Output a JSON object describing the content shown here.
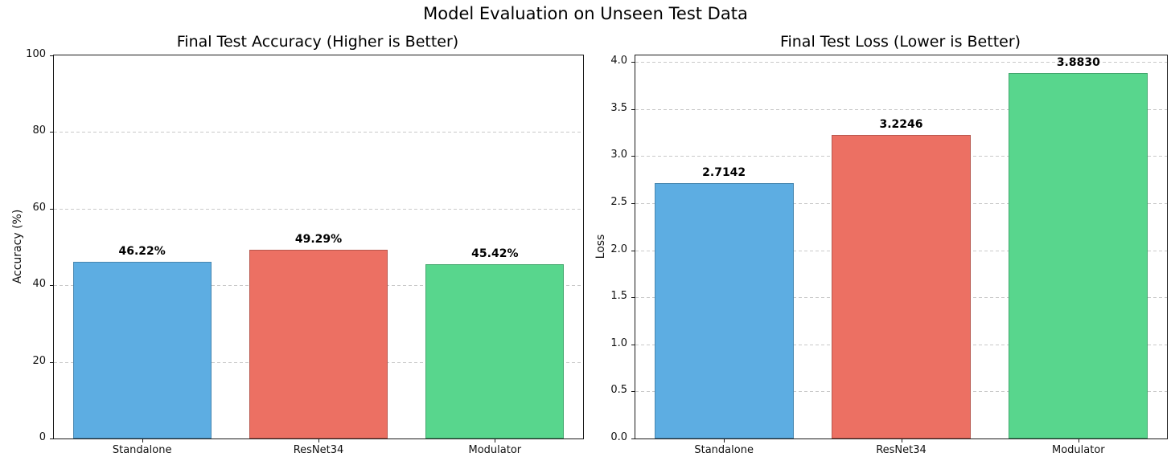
{
  "figure": {
    "suptitle": "Model Evaluation on Unseen Test Data",
    "background_color": "#ffffff",
    "text_color": "#000000",
    "grid_color": "#c9c9c9"
  },
  "chart_data": [
    {
      "type": "bar",
      "title": "Final Test Accuracy (Higher is Better)",
      "xlabel": "",
      "ylabel": "Accuracy (%)",
      "categories": [
        "Standalone",
        "ResNet34",
        "Modulator"
      ],
      "values": [
        46.22,
        49.29,
        45.42
      ],
      "value_labels": [
        "46.22%",
        "49.29%",
        "45.42%"
      ],
      "bar_colors": [
        "#5dade2",
        "#ec7063",
        "#58d68d"
      ],
      "bar_color_names": [
        "blue",
        "red",
        "green"
      ],
      "ylim": [
        0,
        100
      ],
      "yticks": [
        0,
        20,
        40,
        60,
        80,
        100
      ],
      "ytick_labels": [
        "0",
        "20",
        "40",
        "60",
        "80",
        "100"
      ],
      "grid": "horizontal-dashed",
      "legend": "none"
    },
    {
      "type": "bar",
      "title": "Final Test Loss (Lower is Better)",
      "xlabel": "",
      "ylabel": "Loss",
      "categories": [
        "Standalone",
        "ResNet34",
        "Modulator"
      ],
      "values": [
        2.7142,
        3.2246,
        3.883
      ],
      "value_labels": [
        "2.7142",
        "3.2246",
        "3.8830"
      ],
      "bar_colors": [
        "#5dade2",
        "#ec7063",
        "#58d68d"
      ],
      "bar_color_names": [
        "blue",
        "red",
        "green"
      ],
      "ylim": [
        0,
        4.07
      ],
      "yticks": [
        0,
        0.5,
        1.0,
        1.5,
        2.0,
        2.5,
        3.0,
        3.5,
        4.0
      ],
      "ytick_labels": [
        "0.0",
        "0.5",
        "1.0",
        "1.5",
        "2.0",
        "2.5",
        "3.0",
        "3.5",
        "4.0"
      ],
      "grid": "horizontal-dashed",
      "legend": "none"
    }
  ]
}
